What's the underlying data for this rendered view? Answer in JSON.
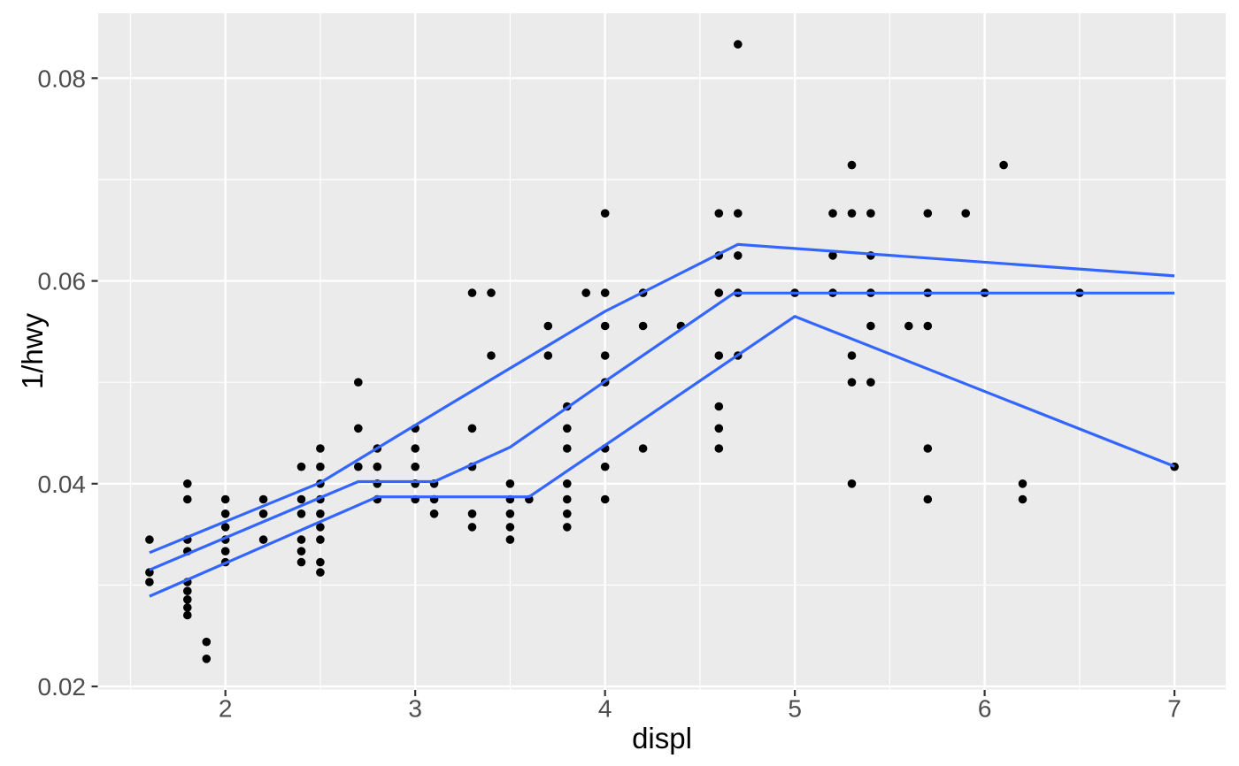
{
  "figure": {
    "x_axis_title": "displ",
    "y_axis_title": "1/hwy",
    "colors": {
      "background": "#FFFFFF",
      "panel_background": "#EBEBEB",
      "gridline": "#FFFFFF",
      "point": "#000000",
      "quantile_line": "#3366FF",
      "tick_label": "#4D4D4D",
      "tick_mark": "#333333",
      "axis_title": "#000000"
    }
  },
  "chart_data": {
    "type": "scatter",
    "title": "",
    "xlabel": "displ",
    "ylabel": "1/hwy",
    "grid": "on",
    "legend": "none",
    "x_domain": [
      1.33,
      7.27
    ],
    "y_domain": [
      0.0197,
      0.0864
    ],
    "x_ticks": {
      "values": [
        2,
        3,
        4,
        5,
        6,
        7
      ],
      "labels": [
        "2",
        "3",
        "4",
        "5",
        "6",
        "7"
      ],
      "minor": [
        1.5,
        2.5,
        3.5,
        4.5,
        5.5,
        6.5
      ]
    },
    "y_ticks": {
      "values": [
        0.02,
        0.04,
        0.06,
        0.08
      ],
      "labels": [
        "0.02",
        "0.04",
        "0.06",
        "0.08"
      ],
      "minor": [
        0.03,
        0.05,
        0.07
      ]
    },
    "y_transform": "y = 1 / hwy",
    "points_displ_hwy": [
      [
        1.6,
        29
      ],
      [
        1.6,
        32
      ],
      [
        1.6,
        33
      ],
      [
        1.8,
        25
      ],
      [
        1.8,
        26
      ],
      [
        1.8,
        29
      ],
      [
        1.8,
        30
      ],
      [
        1.8,
        33
      ],
      [
        1.8,
        34
      ],
      [
        1.8,
        35
      ],
      [
        1.8,
        36
      ],
      [
        1.8,
        37
      ],
      [
        1.9,
        41
      ],
      [
        1.9,
        44
      ],
      [
        2.0,
        26
      ],
      [
        2.0,
        27
      ],
      [
        2.0,
        28
      ],
      [
        2.0,
        29
      ],
      [
        2.0,
        30
      ],
      [
        2.0,
        31
      ],
      [
        2.2,
        26
      ],
      [
        2.2,
        27
      ],
      [
        2.2,
        29
      ],
      [
        2.4,
        24
      ],
      [
        2.4,
        26
      ],
      [
        2.4,
        27
      ],
      [
        2.4,
        29
      ],
      [
        2.4,
        30
      ],
      [
        2.4,
        31
      ],
      [
        2.5,
        23
      ],
      [
        2.5,
        24
      ],
      [
        2.5,
        25
      ],
      [
        2.5,
        26
      ],
      [
        2.5,
        27
      ],
      [
        2.5,
        28
      ],
      [
        2.5,
        29
      ],
      [
        2.5,
        31
      ],
      [
        2.5,
        32
      ],
      [
        2.7,
        20
      ],
      [
        2.7,
        22
      ],
      [
        2.7,
        24
      ],
      [
        2.8,
        23
      ],
      [
        2.8,
        24
      ],
      [
        2.8,
        25
      ],
      [
        2.8,
        26
      ],
      [
        3.0,
        22
      ],
      [
        3.0,
        23
      ],
      [
        3.0,
        24
      ],
      [
        3.0,
        25
      ],
      [
        3.0,
        26
      ],
      [
        3.1,
        25
      ],
      [
        3.1,
        26
      ],
      [
        3.1,
        27
      ],
      [
        3.3,
        17
      ],
      [
        3.3,
        22
      ],
      [
        3.3,
        24
      ],
      [
        3.3,
        27
      ],
      [
        3.3,
        28
      ],
      [
        3.4,
        17
      ],
      [
        3.4,
        19
      ],
      [
        3.5,
        25
      ],
      [
        3.5,
        26
      ],
      [
        3.5,
        27
      ],
      [
        3.5,
        28
      ],
      [
        3.5,
        29
      ],
      [
        3.6,
        26
      ],
      [
        3.7,
        18
      ],
      [
        3.7,
        19
      ],
      [
        3.8,
        21
      ],
      [
        3.8,
        22
      ],
      [
        3.8,
        23
      ],
      [
        3.8,
        25
      ],
      [
        3.8,
        26
      ],
      [
        3.8,
        27
      ],
      [
        3.8,
        28
      ],
      [
        3.9,
        17
      ],
      [
        4.0,
        15
      ],
      [
        4.0,
        17
      ],
      [
        4.0,
        18
      ],
      [
        4.0,
        19
      ],
      [
        4.0,
        20
      ],
      [
        4.0,
        23
      ],
      [
        4.0,
        24
      ],
      [
        4.0,
        26
      ],
      [
        4.2,
        17
      ],
      [
        4.2,
        18
      ],
      [
        4.2,
        23
      ],
      [
        4.4,
        18
      ],
      [
        4.6,
        15
      ],
      [
        4.6,
        16
      ],
      [
        4.6,
        17
      ],
      [
        4.6,
        19
      ],
      [
        4.6,
        21
      ],
      [
        4.6,
        22
      ],
      [
        4.6,
        23
      ],
      [
        4.7,
        12
      ],
      [
        4.7,
        15
      ],
      [
        4.7,
        16
      ],
      [
        4.7,
        17
      ],
      [
        4.7,
        19
      ],
      [
        5.0,
        17
      ],
      [
        5.2,
        15
      ],
      [
        5.2,
        16
      ],
      [
        5.2,
        17
      ],
      [
        5.3,
        14
      ],
      [
        5.3,
        15
      ],
      [
        5.3,
        19
      ],
      [
        5.3,
        20
      ],
      [
        5.3,
        25
      ],
      [
        5.4,
        15
      ],
      [
        5.4,
        16
      ],
      [
        5.4,
        17
      ],
      [
        5.4,
        18
      ],
      [
        5.4,
        20
      ],
      [
        5.6,
        18
      ],
      [
        5.7,
        15
      ],
      [
        5.7,
        17
      ],
      [
        5.7,
        18
      ],
      [
        5.7,
        23
      ],
      [
        5.7,
        26
      ],
      [
        5.9,
        15
      ],
      [
        6.0,
        17
      ],
      [
        6.1,
        14
      ],
      [
        6.2,
        25
      ],
      [
        6.2,
        26
      ],
      [
        6.5,
        17
      ],
      [
        7.0,
        24
      ]
    ],
    "quantile_lines": [
      {
        "name": "quantile-upper",
        "xy": [
          [
            1.6,
            0.0332
          ],
          [
            2.5,
            0.0401
          ],
          [
            3.1,
            0.0469
          ],
          [
            4.0,
            0.057
          ],
          [
            4.7,
            0.0636
          ],
          [
            7.0,
            0.0605
          ]
        ]
      },
      {
        "name": "quantile-median",
        "xy": [
          [
            1.6,
            0.0315
          ],
          [
            2.7,
            0.0402
          ],
          [
            3.1,
            0.0402
          ],
          [
            3.5,
            0.0436
          ],
          [
            4.0,
            0.0501
          ],
          [
            4.68,
            0.0588
          ],
          [
            7.0,
            0.0588
          ]
        ]
      },
      {
        "name": "quantile-lower",
        "xy": [
          [
            1.6,
            0.0289
          ],
          [
            2.8,
            0.0387
          ],
          [
            3.6,
            0.0387
          ],
          [
            5.0,
            0.0565
          ],
          [
            7.0,
            0.0417
          ]
        ]
      }
    ]
  }
}
